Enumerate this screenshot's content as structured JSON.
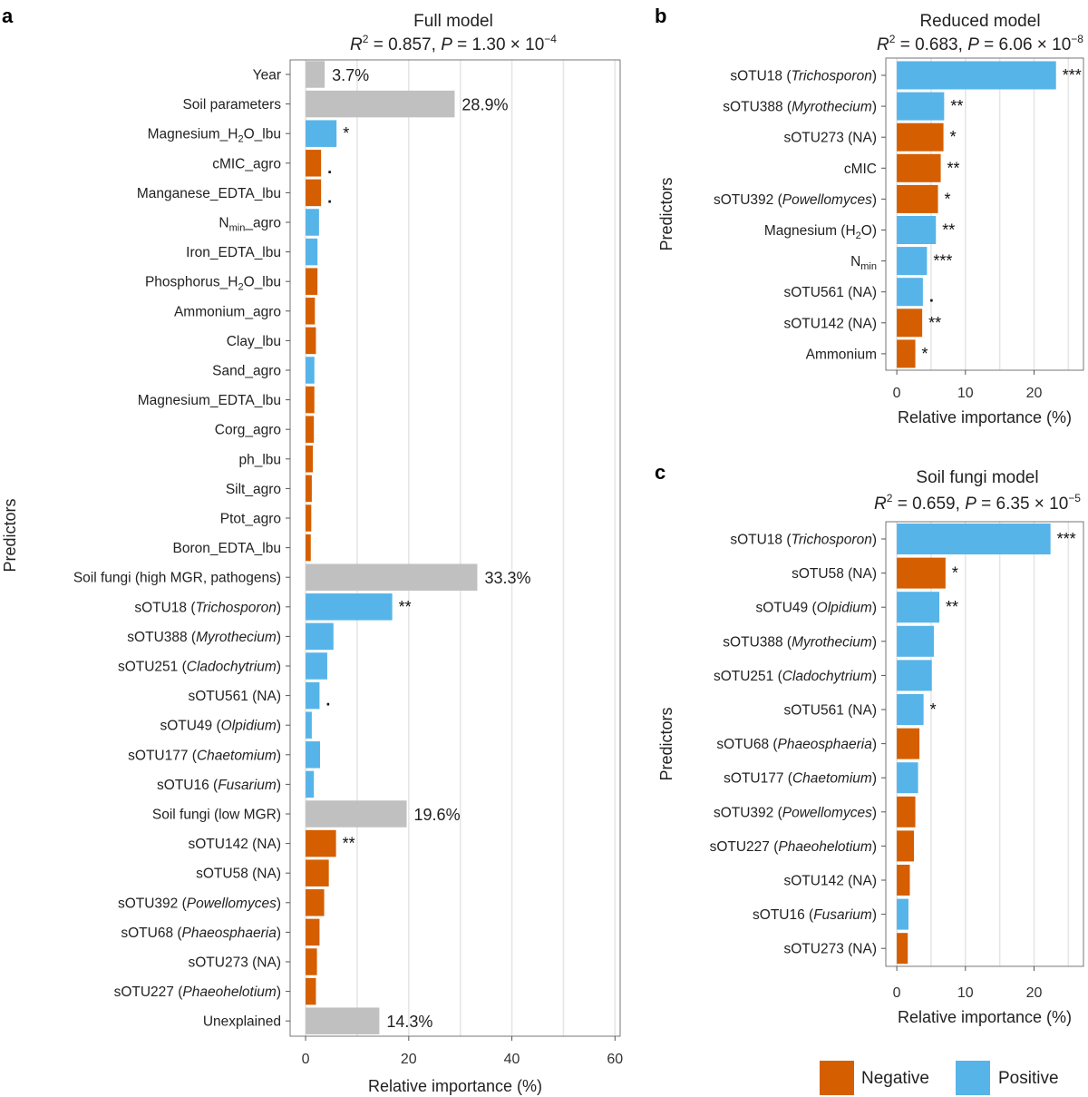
{
  "colors": {
    "negative": "#d55e00",
    "positive": "#56b4e9",
    "group": "#c0c0c0"
  },
  "legend": {
    "negative": "Negative",
    "positive": "Positive"
  },
  "chart_data": [
    {
      "panel": "a",
      "type": "bar",
      "orientation": "horizontal",
      "title": "Full model",
      "stats": {
        "r2": "0.857",
        "p": "1.30 × 10",
        "p_exp": "−4"
      },
      "xlabel": "Relative importance (%)",
      "ylabel": "Predictors",
      "xlim": [
        -3,
        61
      ],
      "xticks": [
        0,
        20,
        40,
        60
      ],
      "bars": [
        {
          "label": "Year",
          "value": 3.7,
          "kind": "group",
          "annot": "3.7%"
        },
        {
          "label": "Soil parameters",
          "value": 28.9,
          "kind": "group",
          "annot": "28.9%"
        },
        {
          "label": "Magnesium_H",
          "sub": "2",
          "rest": "O_lbu",
          "value": 6.0,
          "kind": "positive",
          "annot": "*"
        },
        {
          "label": "cMIC_agro",
          "value": 3.0,
          "kind": "negative",
          "annot": "."
        },
        {
          "label": "Manganese_EDTA_lbu",
          "value": 3.0,
          "kind": "negative",
          "annot": "."
        },
        {
          "label": "N",
          "sub": "min",
          "rest": "_agro",
          "value": 2.6,
          "kind": "positive",
          "annot": ""
        },
        {
          "label": "Iron_EDTA_lbu",
          "value": 2.3,
          "kind": "positive",
          "annot": ""
        },
        {
          "label": "Phosphorus_H",
          "sub": "2",
          "rest": "O_lbu",
          "value": 2.3,
          "kind": "negative",
          "annot": ""
        },
        {
          "label": "Ammonium_agro",
          "value": 1.8,
          "kind": "negative",
          "annot": ""
        },
        {
          "label": "Clay_lbu",
          "value": 2.0,
          "kind": "negative",
          "annot": ""
        },
        {
          "label": "Sand_agro",
          "value": 1.7,
          "kind": "positive",
          "annot": ""
        },
        {
          "label": "Magnesium_EDTA_lbu",
          "value": 1.7,
          "kind": "negative",
          "annot": ""
        },
        {
          "label": "Corg_agro",
          "value": 1.6,
          "kind": "negative",
          "annot": ""
        },
        {
          "label": "ph_lbu",
          "value": 1.4,
          "kind": "negative",
          "annot": ""
        },
        {
          "label": "Silt_agro",
          "value": 1.2,
          "kind": "negative",
          "annot": ""
        },
        {
          "label": "Ptot_agro",
          "value": 1.1,
          "kind": "negative",
          "annot": ""
        },
        {
          "label": "Boron_EDTA_lbu",
          "value": 1.0,
          "kind": "negative",
          "annot": ""
        },
        {
          "label": "Soil fungi (high MGR, pathogens)",
          "value": 33.3,
          "kind": "group",
          "annot": "33.3%"
        },
        {
          "label": "sOTU18 (",
          "italic": "Trichosporon",
          "rest": ")",
          "value": 16.8,
          "kind": "positive",
          "annot": "**"
        },
        {
          "label": "sOTU388 (",
          "italic": "Myrothecium",
          "rest": ")",
          "value": 5.4,
          "kind": "positive",
          "annot": ""
        },
        {
          "label": "sOTU251 (",
          "italic": "Cladochytrium",
          "rest": ")",
          "value": 4.2,
          "kind": "positive",
          "annot": ""
        },
        {
          "label": "sOTU561 (NA)",
          "value": 2.7,
          "kind": "positive",
          "annot": "."
        },
        {
          "label": "sOTU49 (",
          "italic": "Olpidium",
          "rest": ")",
          "value": 1.2,
          "kind": "positive",
          "annot": ""
        },
        {
          "label": "sOTU177 (",
          "italic": "Chaetomium",
          "rest": ")",
          "value": 2.8,
          "kind": "positive",
          "annot": ""
        },
        {
          "label": "sOTU16 (",
          "italic": "Fusarium",
          "rest": ")",
          "value": 1.6,
          "kind": "positive",
          "annot": ""
        },
        {
          "label": "Soil fungi (low MGR)",
          "value": 19.6,
          "kind": "group",
          "annot": "19.6%"
        },
        {
          "label": "sOTU142 (NA)",
          "value": 5.9,
          "kind": "negative",
          "annot": "**"
        },
        {
          "label": "sOTU58 (NA)",
          "value": 4.5,
          "kind": "negative",
          "annot": ""
        },
        {
          "label": "sOTU392 (",
          "italic": "Powellomyces",
          "rest": ")",
          "value": 3.6,
          "kind": "negative",
          "annot": ""
        },
        {
          "label": "sOTU68 (",
          "italic": "Phaeosphaeria",
          "rest": ")",
          "value": 2.7,
          "kind": "negative",
          "annot": ""
        },
        {
          "label": "sOTU273 (NA)",
          "value": 2.2,
          "kind": "negative",
          "annot": ""
        },
        {
          "label": "sOTU227 (",
          "italic": "Phaeohelotium",
          "rest": ")",
          "value": 2.0,
          "kind": "negative",
          "annot": ""
        },
        {
          "label": "Unexplained",
          "value": 14.3,
          "kind": "group",
          "annot": "14.3%"
        }
      ]
    },
    {
      "panel": "b",
      "type": "bar",
      "orientation": "horizontal",
      "title": "Reduced model",
      "stats": {
        "r2": "0.683",
        "p": "6.06 × 10",
        "p_exp": "−8"
      },
      "xlabel": "Relative importance (%)",
      "ylabel": "Predictors",
      "xlim": [
        -1.6,
        27.2
      ],
      "xticks": [
        0,
        10,
        20
      ],
      "bars": [
        {
          "label": "sOTU18 (",
          "italic": "Trichosporon",
          "rest": ")",
          "value": 23.2,
          "kind": "positive",
          "annot": "***"
        },
        {
          "label": "sOTU388 (",
          "italic": "Myrothecium",
          "rest": ")",
          "value": 6.9,
          "kind": "positive",
          "annot": "**"
        },
        {
          "label": "sOTU273 (NA)",
          "value": 6.8,
          "kind": "negative",
          "annot": "*"
        },
        {
          "label": "cMIC",
          "value": 6.4,
          "kind": "negative",
          "annot": "**"
        },
        {
          "label": "sOTU392 (",
          "italic": "Powellomyces",
          "rest": ")",
          "value": 6.0,
          "kind": "negative",
          "annot": "*"
        },
        {
          "label": "Magnesium (H",
          "sub": "2",
          "rest": "O)",
          "value": 5.7,
          "kind": "positive",
          "annot": "**"
        },
        {
          "label": "N",
          "sub": "min",
          "rest": "",
          "value": 4.4,
          "kind": "positive",
          "annot": "***"
        },
        {
          "label": "sOTU561 (NA)",
          "value": 3.8,
          "kind": "positive",
          "annot": "."
        },
        {
          "label": "sOTU142 (NA)",
          "value": 3.7,
          "kind": "negative",
          "annot": "**"
        },
        {
          "label": "Ammonium",
          "value": 2.7,
          "kind": "negative",
          "annot": "*"
        }
      ]
    },
    {
      "panel": "c",
      "type": "bar",
      "orientation": "horizontal",
      "title": "Soil fungi model",
      "stats": {
        "r2": "0.659",
        "p": "6.35 × 10",
        "p_exp": "−5"
      },
      "xlabel": "Relative importance (%)",
      "ylabel": "Predictors",
      "xlim": [
        -1.6,
        27.2
      ],
      "xticks": [
        0,
        10,
        20
      ],
      "bars": [
        {
          "label": "sOTU18 (",
          "italic": "Trichosporon",
          "rest": ")",
          "value": 22.4,
          "kind": "positive",
          "annot": "***"
        },
        {
          "label": "sOTU58 (NA)",
          "value": 7.1,
          "kind": "negative",
          "annot": "*"
        },
        {
          "label": "sOTU49 (",
          "italic": "Olpidium",
          "rest": ")",
          "value": 6.2,
          "kind": "positive",
          "annot": "**"
        },
        {
          "label": "sOTU388 (",
          "italic": "Myrothecium",
          "rest": ")",
          "value": 5.4,
          "kind": "positive",
          "annot": ""
        },
        {
          "label": "sOTU251 (",
          "italic": "Cladochytrium",
          "rest": ")",
          "value": 5.1,
          "kind": "positive",
          "annot": ""
        },
        {
          "label": "sOTU561 (NA)",
          "value": 3.9,
          "kind": "positive",
          "annot": "*"
        },
        {
          "label": "sOTU68 (",
          "italic": "Phaeosphaeria",
          "rest": ")",
          "value": 3.3,
          "kind": "negative",
          "annot": ""
        },
        {
          "label": "sOTU177 (",
          "italic": "Chaetomium",
          "rest": ")",
          "value": 3.1,
          "kind": "positive",
          "annot": ""
        },
        {
          "label": "sOTU392 (",
          "italic": "Powellomyces",
          "rest": ")",
          "value": 2.7,
          "kind": "negative",
          "annot": ""
        },
        {
          "label": "sOTU227 (",
          "italic": "Phaeohelotium",
          "rest": ")",
          "value": 2.5,
          "kind": "negative",
          "annot": ""
        },
        {
          "label": "sOTU142 (NA)",
          "value": 1.9,
          "kind": "negative",
          "annot": ""
        },
        {
          "label": "sOTU16 (",
          "italic": "Fusarium",
          "rest": ")",
          "value": 1.7,
          "kind": "positive",
          "annot": ""
        },
        {
          "label": "sOTU273 (NA)",
          "value": 1.6,
          "kind": "negative",
          "annot": ""
        }
      ]
    }
  ]
}
